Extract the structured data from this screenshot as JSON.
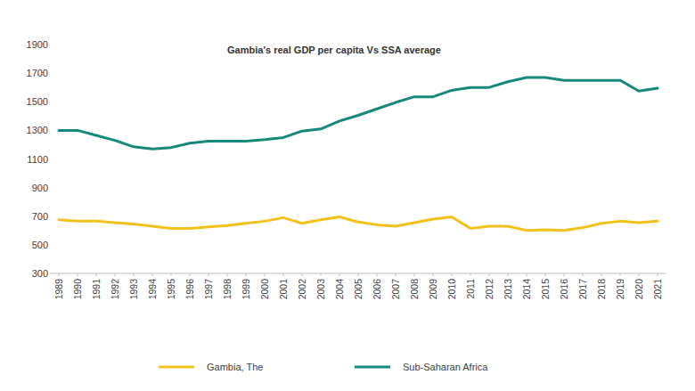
{
  "chart_data": {
    "type": "line",
    "title": "Gambia's  real GDP per capita Vs SSA average",
    "categories": [
      "1989",
      "1990",
      "1991",
      "1992",
      "1993",
      "1994",
      "1995",
      "1996",
      "1997",
      "1998",
      "1999",
      "2000",
      "2001",
      "2002",
      "2003",
      "2004",
      "2005",
      "2006",
      "2007",
      "2008",
      "2009",
      "2010",
      "2011",
      "2012",
      "2013",
      "2014",
      "2015",
      "2016",
      "2017",
      "2018",
      "2019",
      "2020",
      "2021"
    ],
    "series": [
      {
        "name": "Gambia, The",
        "color": "#f2c11b",
        "values": [
          675,
          665,
          665,
          655,
          645,
          630,
          615,
          615,
          625,
          635,
          650,
          665,
          690,
          650,
          675,
          695,
          660,
          640,
          630,
          655,
          680,
          695,
          615,
          630,
          630,
          600,
          605,
          600,
          620,
          650,
          665,
          655,
          665
        ]
      },
      {
        "name": "Sub-Saharan Africa",
        "color": "#17887c",
        "values": [
          1300,
          1300,
          1265,
          1230,
          1185,
          1170,
          1180,
          1210,
          1225,
          1225,
          1225,
          1235,
          1250,
          1295,
          1310,
          1365,
          1405,
          1450,
          1495,
          1535,
          1535,
          1580,
          1600,
          1600,
          1640,
          1670,
          1670,
          1650,
          1650,
          1650,
          1650,
          1575,
          1595
        ]
      }
    ],
    "ylim": [
      300,
      1900
    ],
    "yticks": [
      300,
      500,
      700,
      900,
      1100,
      1300,
      1500,
      1700,
      1900
    ],
    "grid": false,
    "legend": "bottom"
  }
}
